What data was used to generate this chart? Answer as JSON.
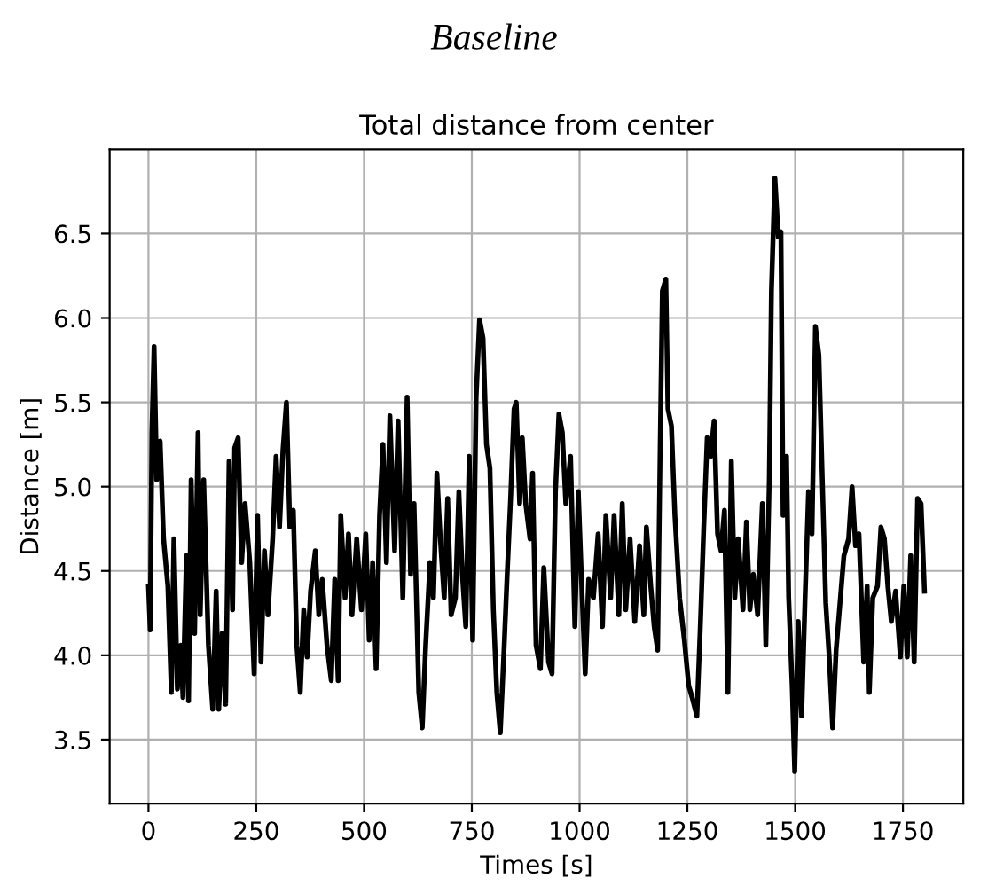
{
  "chart_data": {
    "type": "line",
    "title": "Baseline",
    "subtitle": "Total distance from center",
    "xlabel": "Times [s]",
    "ylabel": "Distance [m]",
    "xlim": [
      -90,
      1890
    ],
    "ylim": [
      3.12,
      7.0
    ],
    "xticks": [
      0,
      250,
      500,
      750,
      1000,
      1250,
      1500,
      1750
    ],
    "yticks": [
      3.5,
      {
        "value": 4,
        "label": "4.0"
      },
      4.5,
      {
        "value": 5,
        "label": "5.0"
      },
      5.5,
      {
        "value": 6,
        "label": "6.0"
      },
      6.5
    ],
    "grid": true,
    "series": [
      {
        "color": "#000000",
        "line_style": "solid",
        "x": [
          0,
          4,
          8,
          13,
          19,
          27,
          35,
          45,
          53,
          59,
          67,
          75,
          80,
          88,
          93,
          99,
          107,
          115,
          120,
          128,
          139,
          149,
          157,
          163,
          171,
          179,
          187,
          195,
          200,
          208,
          216,
          224,
          235,
          245,
          253,
          261,
          269,
          277,
          288,
          296,
          304,
          312,
          320,
          328,
          336,
          344,
          352,
          360,
          368,
          376,
          387,
          395,
          403,
          414,
          424,
          432,
          440,
          446,
          456,
          464,
          472,
          483,
          494,
          504,
          512,
          520,
          528,
          536,
          544,
          552,
          560,
          571,
          579,
          590,
          600,
          608,
          616,
          627,
          635,
          643,
          653,
          661,
          669,
          677,
          686,
          694,
          702,
          712,
          720,
          728,
          736,
          744,
          752,
          760,
          768,
          776,
          784,
          792,
          800,
          808,
          816,
          824,
          832,
          840,
          848,
          853,
          861,
          867,
          875,
          885,
          891,
          899,
          909,
          917,
          928,
          936,
          944,
          952,
          960,
          968,
          979,
          989,
          997,
          1005,
          1013,
          1021,
          1032,
          1043,
          1053,
          1061,
          1072,
          1080,
          1091,
          1099,
          1107,
          1117,
          1128,
          1139,
          1149,
          1155,
          1165,
          1173,
          1181,
          1187,
          1192,
          1200,
          1205,
          1213,
          1221,
          1232,
          1243,
          1253,
          1261,
          1272,
          1280,
          1288,
          1296,
          1304,
          1312,
          1320,
          1328,
          1336,
          1344,
          1352,
          1360,
          1368,
          1379,
          1387,
          1395,
          1403,
          1413,
          1424,
          1432,
          1440,
          1445,
          1453,
          1461,
          1467,
          1472,
          1480,
          1485,
          1493,
          1499,
          1507,
          1515,
          1523,
          1531,
          1539,
          1547,
          1555,
          1563,
          1571,
          1579,
          1587,
          1595,
          1605,
          1613,
          1624,
          1632,
          1640,
          1648,
          1659,
          1667,
          1672,
          1680,
          1691,
          1699,
          1707,
          1715,
          1723,
          1733,
          1744,
          1752,
          1760,
          1768,
          1776,
          1784,
          1792,
          1800
        ],
        "values": [
          4.41,
          4.15,
          5.32,
          5.83,
          5.04,
          5.27,
          4.69,
          4.41,
          3.78,
          4.69,
          3.8,
          4.06,
          3.75,
          4.59,
          3.73,
          5.04,
          4.13,
          5.32,
          4.24,
          5.04,
          4.06,
          3.68,
          4.38,
          3.68,
          4.13,
          3.71,
          5.15,
          4.27,
          5.23,
          5.29,
          4.55,
          4.9,
          4.55,
          3.89,
          4.83,
          3.96,
          4.62,
          4.24,
          4.69,
          5.18,
          4.76,
          5.22,
          5.5,
          4.76,
          4.86,
          4.06,
          3.78,
          4.27,
          3.99,
          4.38,
          4.62,
          4.24,
          4.45,
          4.06,
          3.85,
          4.45,
          3.85,
          4.83,
          4.34,
          4.72,
          4.24,
          4.69,
          4.27,
          4.72,
          4.09,
          4.55,
          3.92,
          4.83,
          5.25,
          4.55,
          5.42,
          4.62,
          5.39,
          4.34,
          5.53,
          4.48,
          4.9,
          3.78,
          3.57,
          4.06,
          4.55,
          4.34,
          5.08,
          4.69,
          4.34,
          4.93,
          4.24,
          4.34,
          4.97,
          4.48,
          4.17,
          5.18,
          4.09,
          5.53,
          5.99,
          5.88,
          5.25,
          5.11,
          4.27,
          3.78,
          3.54,
          3.99,
          4.48,
          4.93,
          5.46,
          5.5,
          4.9,
          5.29,
          4.9,
          4.69,
          5.08,
          4.06,
          3.92,
          4.52,
          3.96,
          3.89,
          4.97,
          5.43,
          5.32,
          4.9,
          5.18,
          4.17,
          4.97,
          4.41,
          3.89,
          4.45,
          4.34,
          4.72,
          4.17,
          4.83,
          4.34,
          4.83,
          4.24,
          4.9,
          4.27,
          4.69,
          4.2,
          4.65,
          4.24,
          4.76,
          4.41,
          4.17,
          4.03,
          5.25,
          6.16,
          6.23,
          5.46,
          5.36,
          4.83,
          4.34,
          4.09,
          3.82,
          3.75,
          3.64,
          4.17,
          4.76,
          5.29,
          5.18,
          5.39,
          4.72,
          4.62,
          4.86,
          3.78,
          5.15,
          4.34,
          4.69,
          4.27,
          4.79,
          4.27,
          4.48,
          4.24,
          4.9,
          4.06,
          5.04,
          6.16,
          6.83,
          6.48,
          6.51,
          4.83,
          5.18,
          4.34,
          3.82,
          3.31,
          4.2,
          3.64,
          4.34,
          4.97,
          4.72,
          5.95,
          5.78,
          5.04,
          4.31,
          3.99,
          3.57,
          4.03,
          4.34,
          4.59,
          4.69,
          5.0,
          4.65,
          4.72,
          3.96,
          4.41,
          3.78,
          4.34,
          4.41,
          4.76,
          4.69,
          4.41,
          4.2,
          4.38,
          3.99,
          4.41,
          3.99,
          4.59,
          3.96,
          4.93,
          4.9,
          4.38
        ]
      }
    ]
  }
}
